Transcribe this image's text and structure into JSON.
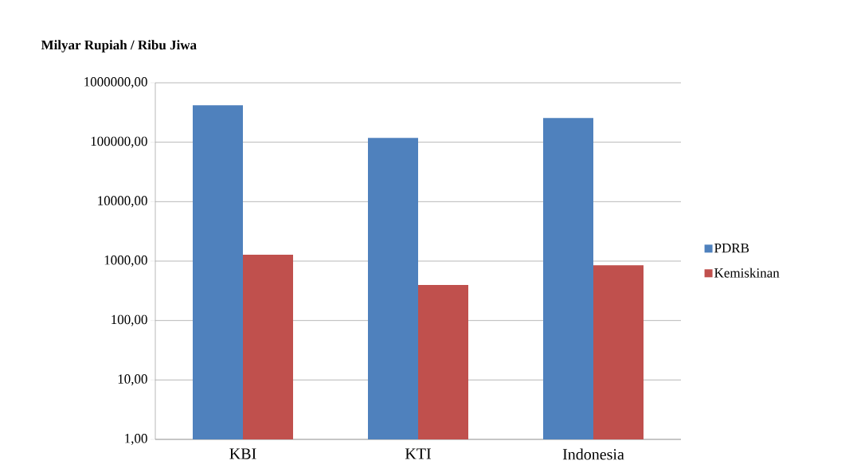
{
  "chart_data": {
    "type": "bar",
    "title": "Milyar Rupiah / Ribu Jiwa",
    "categories": [
      "KBI",
      "KTI",
      "Indonesia"
    ],
    "series": [
      {
        "name": "PDRB",
        "color": "#4f81bd",
        "values": [
          420000,
          118000,
          256000
        ]
      },
      {
        "name": "Kemiskinan",
        "color": "#c0504d",
        "values": [
          1280,
          396,
          853
        ]
      }
    ],
    "log": "y",
    "ylim": [
      1,
      1000000
    ],
    "yticks": [
      {
        "value": 1,
        "label": "1,00"
      },
      {
        "value": 10,
        "label": "10,00"
      },
      {
        "value": 100,
        "label": "100,00"
      },
      {
        "value": 1000,
        "label": "1000,00"
      },
      {
        "value": 10000,
        "label": "10000,00"
      },
      {
        "value": 100000,
        "label": "100000,00"
      },
      {
        "value": 1000000,
        "label": "1000000,00"
      }
    ],
    "grid": "y",
    "legend": "right"
  }
}
